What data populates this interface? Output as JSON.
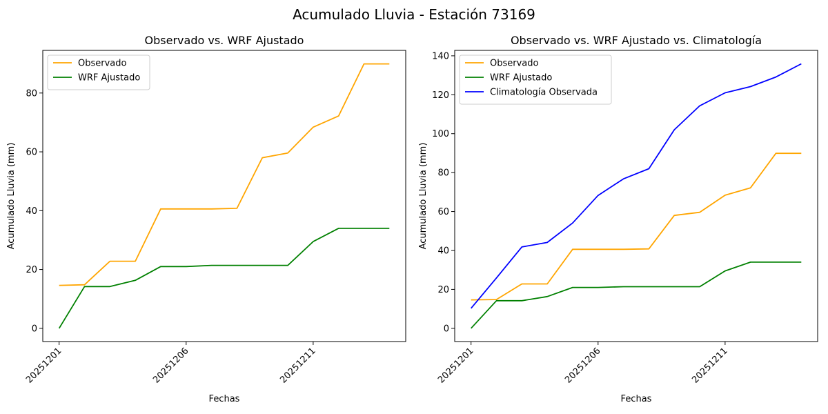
{
  "figure": {
    "title": "Acumulado Lluvia - Estación 73169"
  },
  "chart_data": [
    {
      "type": "line",
      "title": "Observado vs. WRF Ajustado",
      "xlabel": "Fechas",
      "ylabel": "Acumulado Lluvia (mm)",
      "x": [
        "20251201",
        "20251202",
        "20251203",
        "20251204",
        "20251205",
        "20251206",
        "20251207",
        "20251208",
        "20251209",
        "20251210",
        "20251211",
        "20251212",
        "20251213",
        "20251214"
      ],
      "xticks": [
        "20251201",
        "20251206",
        "20251211"
      ],
      "yticks": [
        0,
        20,
        40,
        60,
        80
      ],
      "ylim": [
        -4.5,
        94.5
      ],
      "legend": "top-left",
      "grid": false,
      "series": [
        {
          "name": "Observado",
          "color": "#ffa500",
          "values": [
            14.6,
            14.8,
            22.8,
            22.8,
            40.6,
            40.6,
            40.6,
            40.8,
            58.0,
            59.6,
            68.4,
            72.2,
            89.9,
            89.9
          ]
        },
        {
          "name": "WRF Ajustado",
          "color": "#008000",
          "values": [
            0.0,
            14.2,
            14.2,
            16.3,
            21.0,
            21.0,
            21.4,
            21.4,
            21.4,
            21.4,
            29.5,
            34.0,
            34.0,
            34.0
          ]
        }
      ]
    },
    {
      "type": "line",
      "title": "Observado vs. WRF Ajustado vs. Climatología",
      "xlabel": "Fechas",
      "ylabel": "Acumulado Lluvia (mm)",
      "x": [
        "20251201",
        "20251202",
        "20251203",
        "20251204",
        "20251205",
        "20251206",
        "20251207",
        "20251208",
        "20251209",
        "20251210",
        "20251211",
        "20251212",
        "20251213",
        "20251214"
      ],
      "xticks": [
        "20251201",
        "20251206",
        "20251211"
      ],
      "yticks": [
        0,
        20,
        40,
        60,
        80,
        100,
        120,
        140
      ],
      "ylim": [
        -6.8,
        142.8
      ],
      "legend": "top-left",
      "grid": false,
      "series": [
        {
          "name": "Observado",
          "color": "#ffa500",
          "values": [
            14.6,
            14.8,
            22.8,
            22.8,
            40.6,
            40.6,
            40.6,
            40.8,
            58.0,
            59.6,
            68.4,
            72.2,
            89.9,
            89.9
          ]
        },
        {
          "name": "WRF Ajustado",
          "color": "#008000",
          "values": [
            0.0,
            14.2,
            14.2,
            16.3,
            21.0,
            21.0,
            21.4,
            21.4,
            21.4,
            21.4,
            29.5,
            34.0,
            34.0,
            34.0
          ]
        },
        {
          "name": "Climatología Observada",
          "color": "#0000ff",
          "values": [
            10.3,
            25.9,
            41.8,
            44.1,
            54.1,
            68.3,
            76.8,
            82.0,
            102.0,
            114.3,
            121.0,
            124.2,
            129.1,
            135.9
          ]
        }
      ]
    }
  ]
}
